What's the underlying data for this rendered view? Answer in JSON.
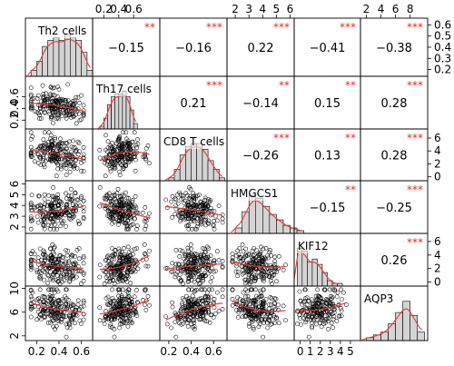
{
  "chart_data": {
    "type": "scatter",
    "subtype": "correlation-matrix",
    "variables": [
      "Th2 cells",
      "Th17 cells",
      "CD8 T cells",
      "HMGCS1",
      "KIF12",
      "AQP3"
    ],
    "ranges": [
      [
        0.1,
        0.7
      ],
      [
        0.05,
        0.95
      ],
      [
        0.12,
        0.72
      ],
      [
        1.4,
        6.3
      ],
      [
        -0.6,
        6.0
      ],
      [
        1.2,
        10.4
      ]
    ],
    "tick_values": [
      [
        0.2,
        0.4,
        0.6
      ],
      [
        0.2,
        0.4,
        0.6
      ],
      [
        0.2,
        0.4,
        0.6
      ],
      [
        2,
        3,
        4,
        5,
        6
      ],
      [
        0,
        1,
        2,
        3,
        4,
        5
      ],
      [
        2,
        4,
        6,
        8
      ]
    ],
    "top_axis": [
      {
        "column": 1,
        "labels": [
          "0.2",
          "0.4",
          "0.6"
        ]
      },
      {
        "column": 3,
        "labels": [
          "2",
          "3",
          "4",
          "5",
          "6"
        ]
      },
      {
        "column": 5,
        "labels": [
          "2",
          "4",
          "6",
          "8"
        ]
      }
    ],
    "bottom_axis": [
      {
        "column": 0,
        "labels": [
          "0.2",
          "0.4",
          "0.6"
        ]
      },
      {
        "column": 2,
        "labels": [
          "0.2",
          "0.4",
          "0.6"
        ]
      },
      {
        "column": 4,
        "labels": [
          "0",
          "1",
          "2",
          "3",
          "4",
          "5"
        ]
      }
    ],
    "left_axis": [
      {
        "row": 1,
        "labels": [
          "0.2",
          "0.4",
          "0.6"
        ]
      },
      {
        "row": 3,
        "labels": [
          "2",
          "3",
          "4",
          "5",
          "6"
        ]
      },
      {
        "row": 5,
        "labels": [
          "2",
          "6",
          "10"
        ],
        "tick_values": [
          2,
          6,
          10
        ]
      }
    ],
    "right_axis": [
      {
        "row": 0,
        "labels": [
          "0.2",
          "0.3",
          "0.4",
          "0.5",
          "0.6"
        ],
        "tick_values": [
          0.2,
          0.3,
          0.4,
          0.5,
          0.6
        ],
        "range": [
          0.14,
          0.66
        ]
      },
      {
        "row": 2,
        "labels": [
          "0",
          "2",
          "4",
          "6"
        ],
        "tick_values": [
          0,
          2,
          4,
          6
        ],
        "range": [
          -0.6,
          7.4
        ]
      },
      {
        "row": 4,
        "labels": [
          "0",
          "2",
          "4",
          "6"
        ],
        "tick_values": [
          0,
          2,
          4,
          6
        ],
        "range": [
          -0.6,
          7.2
        ]
      }
    ],
    "correlations": [
      {
        "row": 0,
        "col": 1,
        "r": "−0.15",
        "stars": "**"
      },
      {
        "row": 0,
        "col": 2,
        "r": "−0.16",
        "stars": "***"
      },
      {
        "row": 0,
        "col": 3,
        "r": "0.22",
        "stars": "***"
      },
      {
        "row": 0,
        "col": 4,
        "r": "−0.41",
        "stars": "***"
      },
      {
        "row": 0,
        "col": 5,
        "r": "−0.38",
        "stars": "***"
      },
      {
        "row": 1,
        "col": 2,
        "r": "0.21",
        "stars": "***"
      },
      {
        "row": 1,
        "col": 3,
        "r": "−0.14",
        "stars": "**"
      },
      {
        "row": 1,
        "col": 4,
        "r": "0.15",
        "stars": "**"
      },
      {
        "row": 1,
        "col": 5,
        "r": "0.28",
        "stars": "***"
      },
      {
        "row": 2,
        "col": 3,
        "r": "−0.26",
        "stars": "***"
      },
      {
        "row": 2,
        "col": 4,
        "r": "0.13",
        "stars": "**"
      },
      {
        "row": 2,
        "col": 5,
        "r": "0.28",
        "stars": "***"
      },
      {
        "row": 3,
        "col": 4,
        "r": "−0.15",
        "stars": "**"
      },
      {
        "row": 3,
        "col": 5,
        "r": "−0.25",
        "stars": "***"
      },
      {
        "row": 4,
        "col": 5,
        "r": "0.26",
        "stars": "***"
      }
    ],
    "histograms": [
      {
        "var": 0,
        "start": 0.15,
        "width": 0.05,
        "counts": [
          2,
          5,
          10,
          12,
          13,
          12,
          14,
          13,
          12,
          8,
          2
        ]
      },
      {
        "var": 1,
        "start": 0.15,
        "width": 0.05,
        "counts": [
          1,
          4,
          9,
          12,
          13,
          13,
          14,
          12,
          7,
          2
        ]
      },
      {
        "var": 2,
        "start": 0.2,
        "width": 0.05,
        "counts": [
          1,
          4,
          9,
          12,
          13,
          13,
          11,
          7,
          4,
          1
        ]
      },
      {
        "var": 3,
        "start": 2.0,
        "width": 0.5,
        "counts": [
          2,
          8,
          14,
          13,
          10,
          7,
          5,
          3,
          2,
          1
        ]
      },
      {
        "var": 4,
        "start": -0.3,
        "width": 0.5,
        "counts": [
          14,
          13,
          9,
          10,
          8,
          5,
          2,
          1,
          1
        ]
      },
      {
        "var": 5,
        "start": 2.0,
        "width": 1.0,
        "counts": [
          1,
          2,
          3,
          6,
          10,
          14,
          9,
          3
        ]
      }
    ],
    "scatter_point_color": "#000000",
    "diagonal_bar_color": "#d4d4d4",
    "fit_line_color": "#e33b3b",
    "significance_color": "#e8292a",
    "n_points": 200,
    "grid": false,
    "legend": "none"
  }
}
